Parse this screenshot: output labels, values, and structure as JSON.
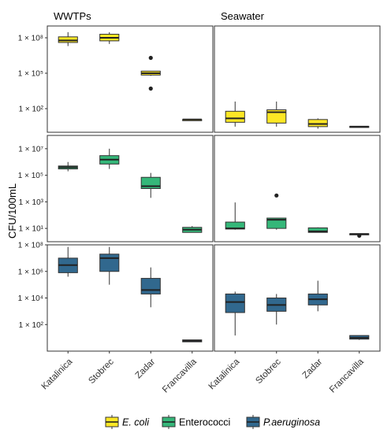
{
  "chart_data": {
    "type": "boxplot",
    "ylabel": "CFU/100mL",
    "categories": [
      "Katalinica",
      "Stobrec",
      "Zadar",
      "Francavilla"
    ],
    "facet_columns": [
      "WWTPs",
      "Seawater"
    ],
    "y_scale": "log10",
    "legend": {
      "placement": "bottom",
      "items": [
        {
          "label": "E. coli",
          "italic": true,
          "color": "#FDE725"
        },
        {
          "label": "Enterococci",
          "italic": false,
          "color": "#35B779"
        },
        {
          "label": "P.aeruginosa",
          "italic": true,
          "color": "#31688E"
        }
      ]
    },
    "panels": [
      {
        "row": 0,
        "col": 0,
        "facet": "WWTPs",
        "series": "E. coli",
        "color": "#FDE725",
        "ylim": [
          1,
          1000000000.0
        ],
        "ticks": [
          {
            "v": 100,
            "label": "1 × 10²"
          },
          {
            "v": 100000,
            "label": "1 × 10⁵"
          },
          {
            "v": 100000000,
            "label": "1 × 10⁸"
          }
        ],
        "boxes": [
          {
            "category": "Katalinica",
            "min": 20000000,
            "q1": 40000000,
            "median": 60000000,
            "q3": 120000000,
            "max": 300000000,
            "outliers": []
          },
          {
            "category": "Stobrec",
            "min": 30000000,
            "q1": 55000000,
            "median": 100000000,
            "q3": 200000000,
            "max": 300000000,
            "outliers": []
          },
          {
            "category": "Zadar",
            "min": 60000,
            "q1": 70000,
            "median": 100000,
            "q3": 150000,
            "max": 150000,
            "outliers": [
              2000000,
              5000
            ]
          },
          {
            "category": "Francavilla",
            "min": 12,
            "q1": 12,
            "median": 12,
            "q3": 12,
            "max": 12,
            "outliers": []
          }
        ]
      },
      {
        "row": 0,
        "col": 1,
        "facet": "Seawater",
        "series": "E. coli",
        "color": "#FDE725",
        "ylim": [
          1,
          1000000000.0
        ],
        "ticks": [
          {
            "v": 100,
            "label": "1 × 10²"
          },
          {
            "v": 100000,
            "label": "1 × 10⁵"
          },
          {
            "v": 100000000,
            "label": "1 × 10⁸"
          }
        ],
        "boxes": [
          {
            "category": "Katalinica",
            "min": 3,
            "q1": 7,
            "median": 15,
            "q3": 60,
            "max": 400,
            "outliers": []
          },
          {
            "category": "Stobrec",
            "min": 3,
            "q1": 6,
            "median": 50,
            "q3": 80,
            "max": 400,
            "outliers": []
          },
          {
            "category": "Zadar",
            "min": 2,
            "q1": 3,
            "median": 5,
            "q3": 12,
            "max": 15,
            "outliers": []
          },
          {
            "category": "Francavilla",
            "min": 2.6,
            "q1": 2.8,
            "median": 3,
            "q3": 3.2,
            "max": 3.3,
            "outliers": []
          }
        ]
      },
      {
        "row": 1,
        "col": 0,
        "facet": "WWTPs",
        "series": "Enterococci",
        "color": "#35B779",
        "ylim": [
          1,
          100000000.0
        ],
        "ticks": [
          {
            "v": 10,
            "label": "1 × 10¹"
          },
          {
            "v": 1000,
            "label": "1 × 10³"
          },
          {
            "v": 100000,
            "label": "1 × 10⁵"
          },
          {
            "v": 10000000,
            "label": "1 × 10⁷"
          }
        ],
        "boxes": [
          {
            "category": "Katalinica",
            "min": 200000,
            "q1": 300000,
            "median": 400000,
            "q3": 500000,
            "max": 1000000,
            "outliers": []
          },
          {
            "category": "Stobrec",
            "min": 300000,
            "q1": 700000,
            "median": 1500000,
            "q3": 3000000,
            "max": 10000000,
            "outliers": []
          },
          {
            "category": "Zadar",
            "min": 2000,
            "q1": 10000,
            "median": 15000,
            "q3": 70000,
            "max": 150000,
            "outliers": []
          },
          {
            "category": "Francavilla",
            "min": 5,
            "q1": 5,
            "median": 8,
            "q3": 12,
            "max": 15,
            "outliers": []
          }
        ]
      },
      {
        "row": 1,
        "col": 1,
        "facet": "Seawater",
        "series": "Enterococci",
        "color": "#35B779",
        "ylim": [
          1,
          100000000.0
        ],
        "ticks": [
          {
            "v": 10,
            "label": "1 × 10¹"
          },
          {
            "v": 1000,
            "label": "1 × 10³"
          },
          {
            "v": 100000,
            "label": "1 × 10⁵"
          },
          {
            "v": 10000000,
            "label": "1 × 10⁷"
          }
        ],
        "boxes": [
          {
            "category": "Katalinica",
            "min": 8,
            "q1": 9,
            "median": 10,
            "q3": 30,
            "max": 900,
            "outliers": []
          },
          {
            "category": "Stobrec",
            "min": 8,
            "q1": 10,
            "median": 45,
            "q3": 60,
            "max": 60,
            "outliers": [
              3000
            ]
          },
          {
            "category": "Zadar",
            "min": 5,
            "q1": 5,
            "median": 6,
            "q3": 11,
            "max": 12,
            "outliers": []
          },
          {
            "category": "Francavilla",
            "min": 3.5,
            "q1": 3.6,
            "median": 3.8,
            "q3": 4,
            "max": 4.2,
            "outliers": [
              2.8
            ]
          }
        ]
      },
      {
        "row": 2,
        "col": 0,
        "facet": "WWTPs",
        "series": "P.aeruginosa",
        "color": "#31688E",
        "ylim": [
          1,
          100000000.0
        ],
        "ticks": [
          {
            "v": 100,
            "label": "1 × 10²"
          },
          {
            "v": 10000,
            "label": "1 × 10⁴"
          },
          {
            "v": 1000000,
            "label": "1 × 10⁶"
          },
          {
            "v": 100000000,
            "label": "1 × 10⁸"
          }
        ],
        "boxes": [
          {
            "category": "Katalinica",
            "min": 400000,
            "q1": 800000,
            "median": 3000000,
            "q3": 10000000,
            "max": 70000000,
            "outliers": []
          },
          {
            "category": "Stobrec",
            "min": 100000,
            "q1": 1000000,
            "median": 10000000,
            "q3": 20000000,
            "max": 70000000,
            "outliers": []
          },
          {
            "category": "Zadar",
            "min": 2000,
            "q1": 20000,
            "median": 40000,
            "q3": 300000,
            "max": 2000000,
            "outliers": []
          },
          {
            "category": "Francavilla",
            "min": 5,
            "q1": 5,
            "median": 6,
            "q3": 7,
            "max": 7,
            "outliers": []
          }
        ]
      },
      {
        "row": 2,
        "col": 1,
        "facet": "Seawater",
        "series": "P.aeruginosa",
        "color": "#31688E",
        "ylim": [
          1,
          100000000.0
        ],
        "ticks": [
          {
            "v": 100,
            "label": "1 × 10²"
          },
          {
            "v": 10000,
            "label": "1 × 10⁴"
          },
          {
            "v": 1000000,
            "label": "1 × 10⁶"
          },
          {
            "v": 100000000,
            "label": "1 × 10⁸"
          }
        ],
        "boxes": [
          {
            "category": "Katalinica",
            "min": 15,
            "q1": 800,
            "median": 5000,
            "q3": 20000,
            "max": 30000,
            "outliers": []
          },
          {
            "category": "Stobrec",
            "min": 100,
            "q1": 1000,
            "median": 3000,
            "q3": 10000,
            "max": 20000,
            "outliers": []
          },
          {
            "category": "Zadar",
            "min": 1000,
            "q1": 3000,
            "median": 8000,
            "q3": 20000,
            "max": 200000,
            "outliers": []
          },
          {
            "category": "Francavilla",
            "min": 7,
            "q1": 8,
            "median": 10,
            "q3": 15,
            "max": 15,
            "outliers": []
          }
        ]
      }
    ]
  }
}
